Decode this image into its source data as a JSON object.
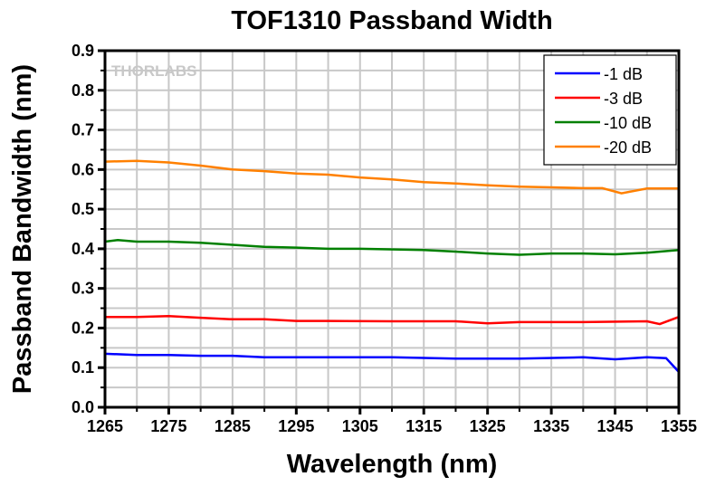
{
  "chart_data": {
    "type": "line",
    "title": "TOF1310 Passband Width",
    "xlabel": "Wavelength (nm)",
    "ylabel": "Passband Bandwidth (nm)",
    "xlim": [
      1265,
      1355
    ],
    "ylim": [
      0,
      0.9
    ],
    "xticks": [
      "1265",
      "1275",
      "1285",
      "1295",
      "1305",
      "1315",
      "1325",
      "1335",
      "1345",
      "1355"
    ],
    "yticks": [
      "0.0",
      "0.1",
      "0.2",
      "0.3",
      "0.4",
      "0.5",
      "0.6",
      "0.7",
      "0.8",
      "0.9"
    ],
    "grid": true,
    "legend_position": "top-right",
    "watermark": "THORLABS",
    "series": [
      {
        "name": "-1 dB",
        "color": "#0000ff",
        "x": [
          1265,
          1270,
          1275,
          1280,
          1285,
          1290,
          1300,
          1310,
          1320,
          1330,
          1340,
          1345,
          1350,
          1353,
          1355
        ],
        "y": [
          0.135,
          0.132,
          0.132,
          0.13,
          0.13,
          0.126,
          0.126,
          0.126,
          0.123,
          0.123,
          0.126,
          0.121,
          0.126,
          0.124,
          0.089
        ]
      },
      {
        "name": "-3 dB",
        "color": "#ff0000",
        "x": [
          1265,
          1270,
          1275,
          1280,
          1285,
          1290,
          1295,
          1300,
          1310,
          1320,
          1325,
          1330,
          1340,
          1350,
          1352,
          1355
        ],
        "y": [
          0.228,
          0.228,
          0.23,
          0.226,
          0.222,
          0.222,
          0.218,
          0.218,
          0.217,
          0.217,
          0.212,
          0.215,
          0.215,
          0.217,
          0.21,
          0.228
        ]
      },
      {
        "name": "-10 dB",
        "color": "#008000",
        "x": [
          1265,
          1267,
          1270,
          1275,
          1280,
          1285,
          1290,
          1295,
          1300,
          1305,
          1315,
          1320,
          1325,
          1330,
          1335,
          1340,
          1345,
          1350,
          1355
        ],
        "y": [
          0.418,
          0.422,
          0.418,
          0.418,
          0.415,
          0.41,
          0.405,
          0.403,
          0.4,
          0.4,
          0.397,
          0.393,
          0.388,
          0.385,
          0.388,
          0.388,
          0.386,
          0.39,
          0.397
        ]
      },
      {
        "name": "-20 dB",
        "color": "#ff8000",
        "x": [
          1265,
          1270,
          1275,
          1280,
          1285,
          1290,
          1295,
          1300,
          1305,
          1310,
          1315,
          1320,
          1325,
          1330,
          1335,
          1340,
          1343,
          1346,
          1350,
          1355
        ],
        "y": [
          0.62,
          0.622,
          0.618,
          0.61,
          0.6,
          0.596,
          0.59,
          0.587,
          0.58,
          0.575,
          0.568,
          0.565,
          0.56,
          0.557,
          0.555,
          0.553,
          0.553,
          0.54,
          0.552,
          0.552
        ]
      }
    ]
  }
}
